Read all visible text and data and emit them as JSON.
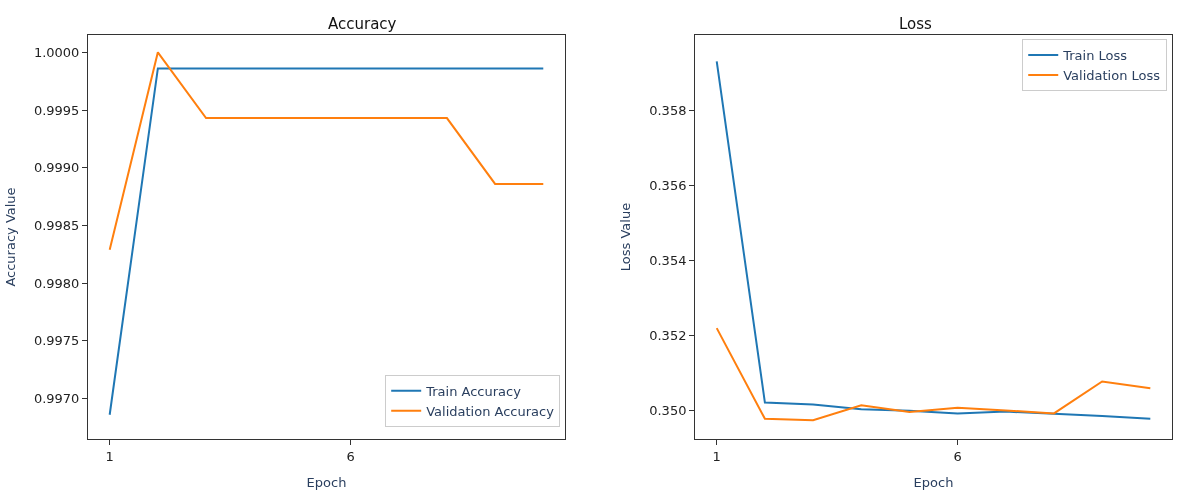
{
  "chart_data": [
    {
      "type": "line",
      "title": "Accuracy",
      "xlabel": "Epoch",
      "ylabel": "Accuracy Value",
      "x": [
        1,
        2,
        3,
        4,
        5,
        6,
        7,
        8,
        9,
        10
      ],
      "series": [
        {
          "name": "Train Accuracy",
          "color": "#1f77b4",
          "values": [
            0.99686,
            0.99986,
            0.99986,
            0.99986,
            0.99986,
            0.99986,
            0.99986,
            0.99986,
            0.99986,
            0.99986
          ]
        },
        {
          "name": "Validation Accuracy",
          "color": "#ff7f0e",
          "values": [
            0.99829,
            1.0,
            0.99943,
            0.99943,
            0.99943,
            0.99943,
            0.99943,
            0.99943,
            0.99886,
            0.99886
          ]
        }
      ],
      "xlim": [
        0.55,
        10.45
      ],
      "xticks": [
        1,
        6
      ],
      "ylim": [
        0.99665,
        1.00015
      ],
      "yticks": [
        {
          "value": 0.997,
          "label": "0.9970"
        },
        0.9975,
        {
          "value": 0.998,
          "label": "0.9980"
        },
        0.9985,
        {
          "value": 0.999,
          "label": "0.9990"
        },
        0.9995,
        {
          "value": 1,
          "label": "1.0000"
        }
      ],
      "legend": "bottom right"
    },
    {
      "type": "line",
      "title": "Loss",
      "xlabel": "Epoch",
      "ylabel": "Loss Value",
      "x": [
        1,
        2,
        3,
        4,
        5,
        6,
        7,
        8,
        9,
        10
      ],
      "series": [
        {
          "name": "Train Loss",
          "color": "#1f77b4",
          "values": [
            0.3593,
            0.35022,
            0.35017,
            0.35004,
            0.35,
            0.34993,
            0.34998,
            0.34992,
            0.34986,
            0.34979
          ]
        },
        {
          "name": "Validation Loss",
          "color": "#ff7f0e",
          "values": [
            0.3522,
            0.34979,
            0.34975,
            0.35015,
            0.34997,
            0.35008,
            0.35001,
            0.34993,
            0.35078,
            0.3506
          ]
        }
      ],
      "xlim": [
        0.55,
        10.45
      ],
      "xticks": [
        1,
        6
      ],
      "ylim": [
        0.34925,
        0.36
      ],
      "yticks": [
        {
          "value": 0.35,
          "label": "0.350"
        },
        0.352,
        0.354,
        0.356,
        0.358
      ],
      "legend": "top right"
    }
  ]
}
